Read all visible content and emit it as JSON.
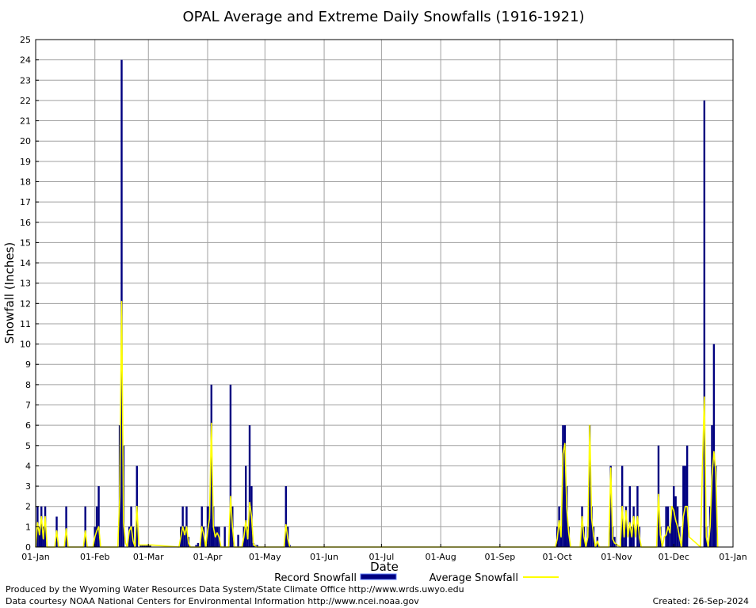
{
  "chart_data": {
    "type": "bar",
    "title": "OPAL Average and Extreme Daily Snowfalls (1916-1921)",
    "xlabel": "Date",
    "ylabel": "Snowfall (Inches)",
    "ylim": [
      0,
      25
    ],
    "yticks": [
      "0",
      "1",
      "2",
      "3",
      "4",
      "5",
      "6",
      "7",
      "8",
      "9",
      "10",
      "11",
      "12",
      "13",
      "14",
      "15",
      "16",
      "17",
      "18",
      "19",
      "20",
      "21",
      "22",
      "23",
      "24",
      "25"
    ],
    "xticks": [
      {
        "label": "01-Jan",
        "day": 1
      },
      {
        "label": "01-Feb",
        "day": 32
      },
      {
        "label": "01-Mar",
        "day": 60
      },
      {
        "label": "01-Apr",
        "day": 91
      },
      {
        "label": "01-May",
        "day": 121
      },
      {
        "label": "01-Jun",
        "day": 152
      },
      {
        "label": "01-Jul",
        "day": 182
      },
      {
        "label": "01-Aug",
        "day": 213
      },
      {
        "label": "01-Sep",
        "day": 244
      },
      {
        "label": "01-Oct",
        "day": 274
      },
      {
        "label": "01-Nov",
        "day": 305
      },
      {
        "label": "01-Dec",
        "day": 335
      },
      {
        "label": "01-Jan",
        "day": 366
      }
    ],
    "grid": true,
    "legend_placement": "bottom",
    "colors": {
      "record": "#000080",
      "average": "#ffff00",
      "grid": "#a0a0a0"
    },
    "series": [
      {
        "name": "Record Snowfall",
        "style": "bar",
        "points": [
          [
            2,
            2
          ],
          [
            3,
            1
          ],
          [
            4,
            2
          ],
          [
            5,
            1
          ],
          [
            6,
            2
          ],
          [
            12,
            1.5
          ],
          [
            17,
            2
          ],
          [
            27,
            2
          ],
          [
            32,
            1
          ],
          [
            33,
            2
          ],
          [
            34,
            3
          ],
          [
            45,
            6
          ],
          [
            46,
            24
          ],
          [
            47,
            5
          ],
          [
            50,
            1
          ],
          [
            51,
            2
          ],
          [
            52,
            1
          ],
          [
            54,
            4
          ],
          [
            56,
            0.1
          ],
          [
            57,
            0.1
          ],
          [
            58,
            0.1
          ],
          [
            59,
            0.1
          ],
          [
            60,
            0.1
          ],
          [
            61,
            0.1
          ],
          [
            77,
            1
          ],
          [
            78,
            2
          ],
          [
            79,
            1
          ],
          [
            80,
            2
          ],
          [
            81,
            0.5
          ],
          [
            85,
            0.1
          ],
          [
            86,
            0.2
          ],
          [
            88,
            2
          ],
          [
            89,
            1
          ],
          [
            91,
            2
          ],
          [
            92,
            2
          ],
          [
            93,
            8
          ],
          [
            94,
            2
          ],
          [
            95,
            1
          ],
          [
            96,
            1
          ],
          [
            97,
            1
          ],
          [
            100,
            1
          ],
          [
            103,
            8
          ],
          [
            104,
            2
          ],
          [
            107,
            0.6
          ],
          [
            110,
            1
          ],
          [
            111,
            4
          ],
          [
            112,
            1
          ],
          [
            113,
            6
          ],
          [
            114,
            3
          ],
          [
            115,
            0.2
          ],
          [
            116,
            0.1
          ],
          [
            117,
            0.1
          ],
          [
            132,
            3
          ],
          [
            133,
            1
          ],
          [
            134,
            0.1
          ],
          [
            274,
            1
          ],
          [
            275,
            2
          ],
          [
            276,
            1
          ],
          [
            277,
            6
          ],
          [
            278,
            6
          ],
          [
            279,
            3
          ],
          [
            280,
            1
          ],
          [
            287,
            2
          ],
          [
            288,
            1
          ],
          [
            290,
            1
          ],
          [
            291,
            6
          ],
          [
            292,
            2
          ],
          [
            293,
            1
          ],
          [
            295,
            0.5
          ],
          [
            302,
            4
          ],
          [
            303,
            1
          ],
          [
            304,
            0.5
          ],
          [
            308,
            4
          ],
          [
            309,
            1
          ],
          [
            310,
            2
          ],
          [
            312,
            3
          ],
          [
            313,
            1
          ],
          [
            314,
            2
          ],
          [
            316,
            3
          ],
          [
            317,
            1
          ],
          [
            327,
            5
          ],
          [
            328,
            1
          ],
          [
            331,
            2
          ],
          [
            332,
            2
          ],
          [
            333,
            1
          ],
          [
            334,
            2
          ],
          [
            335,
            3
          ],
          [
            336,
            2.5
          ],
          [
            337,
            2
          ],
          [
            338,
            1
          ],
          [
            340,
            4
          ],
          [
            341,
            4
          ],
          [
            342,
            5
          ],
          [
            351,
            22
          ],
          [
            352,
            1
          ],
          [
            354,
            2
          ],
          [
            355,
            6
          ],
          [
            356,
            10
          ],
          [
            357,
            4
          ]
        ]
      },
      {
        "name": "Average Snowfall",
        "style": "line",
        "points": [
          [
            1,
            0
          ],
          [
            2,
            1.2
          ],
          [
            3,
            0.6
          ],
          [
            4,
            1.5
          ],
          [
            5,
            0.4
          ],
          [
            6,
            1.5
          ],
          [
            7,
            0
          ],
          [
            11,
            0
          ],
          [
            12,
            0.8
          ],
          [
            13,
            0
          ],
          [
            16,
            0
          ],
          [
            17,
            0.9
          ],
          [
            18,
            0
          ],
          [
            26,
            0
          ],
          [
            27,
            0.8
          ],
          [
            28,
            0
          ],
          [
            31,
            0
          ],
          [
            32,
            0.5
          ],
          [
            33,
            0.8
          ],
          [
            34,
            1.0
          ],
          [
            35,
            0
          ],
          [
            44,
            0
          ],
          [
            45,
            2.5
          ],
          [
            46,
            12.1
          ],
          [
            47,
            1.2
          ],
          [
            48,
            0.2
          ],
          [
            49,
            0
          ],
          [
            50,
            0.8
          ],
          [
            51,
            1.0
          ],
          [
            52,
            0.3
          ],
          [
            53,
            0
          ],
          [
            54,
            2.0
          ],
          [
            55,
            0.1
          ],
          [
            62,
            0.1
          ],
          [
            76,
            0
          ],
          [
            77,
            0.5
          ],
          [
            78,
            1.0
          ],
          [
            79,
            0.6
          ],
          [
            80,
            1.0
          ],
          [
            81,
            0.2
          ],
          [
            82,
            0
          ],
          [
            87,
            0
          ],
          [
            88,
            1.0
          ],
          [
            89,
            0.6
          ],
          [
            90,
            0
          ],
          [
            91,
            0.8
          ],
          [
            92,
            1.4
          ],
          [
            93,
            6.1
          ],
          [
            94,
            1.0
          ],
          [
            95,
            0.5
          ],
          [
            96,
            0.7
          ],
          [
            97,
            0.5
          ],
          [
            98,
            0
          ],
          [
            102,
            0
          ],
          [
            103,
            2.5
          ],
          [
            104,
            1.0
          ],
          [
            105,
            0
          ],
          [
            109,
            0
          ],
          [
            110,
            0.5
          ],
          [
            111,
            1.3
          ],
          [
            112,
            0.4
          ],
          [
            113,
            2.2
          ],
          [
            114,
            1.5
          ],
          [
            115,
            0.1
          ],
          [
            117,
            0
          ],
          [
            131,
            0
          ],
          [
            132,
            1.1
          ],
          [
            133,
            0.4
          ],
          [
            134,
            0
          ],
          [
            273,
            0
          ],
          [
            274,
            0.4
          ],
          [
            275,
            1.3
          ],
          [
            276,
            0.5
          ],
          [
            277,
            4.6
          ],
          [
            278,
            5.1
          ],
          [
            279,
            1.9
          ],
          [
            280,
            0.7
          ],
          [
            281,
            0
          ],
          [
            286,
            0
          ],
          [
            287,
            1.5
          ],
          [
            288,
            0.5
          ],
          [
            289,
            0
          ],
          [
            290,
            0.5
          ],
          [
            291,
            6.0
          ],
          [
            292,
            1.4
          ],
          [
            293,
            0.6
          ],
          [
            294,
            0
          ],
          [
            295,
            0.3
          ],
          [
            296,
            0
          ],
          [
            301,
            0
          ],
          [
            302,
            3.9
          ],
          [
            303,
            0.4
          ],
          [
            304,
            0.2
          ],
          [
            307,
            0
          ],
          [
            308,
            2.0
          ],
          [
            309,
            0.5
          ],
          [
            310,
            1.8
          ],
          [
            311,
            0.5
          ],
          [
            312,
            1.2
          ],
          [
            313,
            0.5
          ],
          [
            314,
            1.5
          ],
          [
            315,
            0.5
          ],
          [
            316,
            1.5
          ],
          [
            317,
            0.5
          ],
          [
            318,
            0
          ],
          [
            326,
            0
          ],
          [
            327,
            2.6
          ],
          [
            328,
            0.6
          ],
          [
            329,
            0
          ],
          [
            330,
            0.5
          ],
          [
            331,
            0.6
          ],
          [
            332,
            1.0
          ],
          [
            333,
            0.7
          ],
          [
            334,
            2.0
          ],
          [
            335,
            1.8
          ],
          [
            336,
            1.3
          ],
          [
            337,
            1.0
          ],
          [
            338,
            0.5
          ],
          [
            339,
            0
          ],
          [
            340,
            1.5
          ],
          [
            341,
            2.0
          ],
          [
            342,
            2.0
          ],
          [
            343,
            0.5
          ],
          [
            349,
            0
          ],
          [
            350,
            4.0
          ],
          [
            351,
            7.4
          ],
          [
            352,
            0.5
          ],
          [
            353,
            0
          ],
          [
            354,
            1.0
          ],
          [
            355,
            3.5
          ],
          [
            356,
            4.7
          ],
          [
            357,
            3.7
          ],
          [
            358,
            0
          ]
        ]
      }
    ]
  },
  "footer": {
    "produced_by": "Produced by the Wyoming Water Resources Data System/State Climate Office http://www.wrds.uwyo.edu",
    "data_courtesy": "Data courtesy NOAA National Centers for Environmental Information http://www.ncei.noaa.gov",
    "created": "Created:  26-Sep-2024"
  }
}
